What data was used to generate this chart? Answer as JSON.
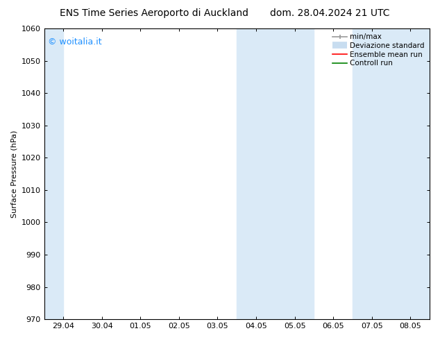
{
  "title_left": "ENS Time Series Aeroporto di Auckland",
  "title_right": "dom. 28.04.2024 21 UTC",
  "ylabel": "Surface Pressure (hPa)",
  "ylim": [
    970,
    1060
  ],
  "yticks": [
    970,
    980,
    990,
    1000,
    1010,
    1020,
    1030,
    1040,
    1050,
    1060
  ],
  "xtick_labels": [
    "29.04",
    "30.04",
    "01.05",
    "02.05",
    "03.05",
    "04.05",
    "05.05",
    "06.05",
    "07.05",
    "08.05"
  ],
  "xtick_positions": [
    0,
    1,
    2,
    3,
    4,
    5,
    6,
    7,
    8,
    9
  ],
  "xlim": [
    -0.5,
    9.5
  ],
  "shaded_regions": [
    {
      "x_start": -0.5,
      "x_end": 0.0
    },
    {
      "x_start": 4.5,
      "x_end": 6.5
    },
    {
      "x_start": 7.5,
      "x_end": 9.5
    }
  ],
  "shaded_color": "#daeaf7",
  "watermark_text": "© woitalia.it",
  "watermark_color": "#1E90FF",
  "legend_labels": [
    "min/max",
    "Deviazione standard",
    "Ensemble mean run",
    "Controll run"
  ],
  "legend_colors": [
    "#999999",
    "#c8ddf0",
    "#ff0000",
    "#008000"
  ],
  "bg_color": "#ffffff",
  "font_size_title": 10,
  "font_size_axis": 8,
  "font_size_legend": 7.5,
  "font_size_watermark": 9
}
